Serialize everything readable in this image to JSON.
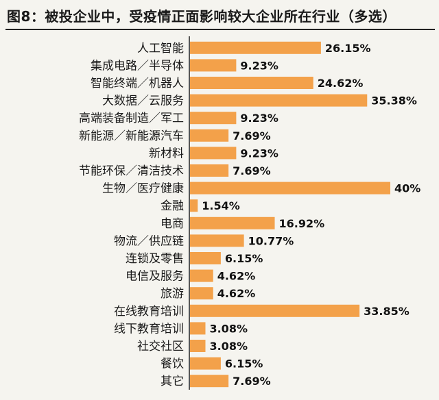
{
  "title": "图8：被投企业中，受疫情正面影响较大企业所在行业（多选）",
  "chart_data": {
    "type": "bar",
    "orientation": "horizontal",
    "title": "图8：被投企业中，受疫情正面影响较大企业所在行业（多选）",
    "categories": [
      "人工智能",
      "集成电路／半导体",
      "智能终端／机器人",
      "大数据／云服务",
      "高端装备制造／军工",
      "新能源／新能源汽车",
      "新材料",
      "节能环保／清洁技术",
      "生物／医疗健康",
      "金融",
      "电商",
      "物流／供应链",
      "连锁及零售",
      "电信及服务",
      "旅游",
      "在线教育培训",
      "线下教育培训",
      "社交社区",
      "餐饮",
      "其它"
    ],
    "values": [
      26.15,
      9.23,
      24.62,
      35.38,
      9.23,
      7.69,
      9.23,
      7.69,
      40,
      1.54,
      16.92,
      10.77,
      6.15,
      4.62,
      4.62,
      33.85,
      3.08,
      3.08,
      6.15,
      7.69
    ],
    "value_labels": [
      "26.15%",
      "9.23%",
      "24.62%",
      "35.38%",
      "9.23%",
      "7.69%",
      "9.23%",
      "7.69%",
      "40%",
      "1.54%",
      "16.92%",
      "10.77%",
      "6.15%",
      "4.62%",
      "4.62%",
      "33.85%",
      "3.08%",
      "3.08%",
      "6.15%",
      "7.69%"
    ],
    "xlim": [
      0,
      40
    ],
    "grid": false,
    "colors": {
      "bar": "#f3a14a",
      "axis": "#222222"
    }
  }
}
